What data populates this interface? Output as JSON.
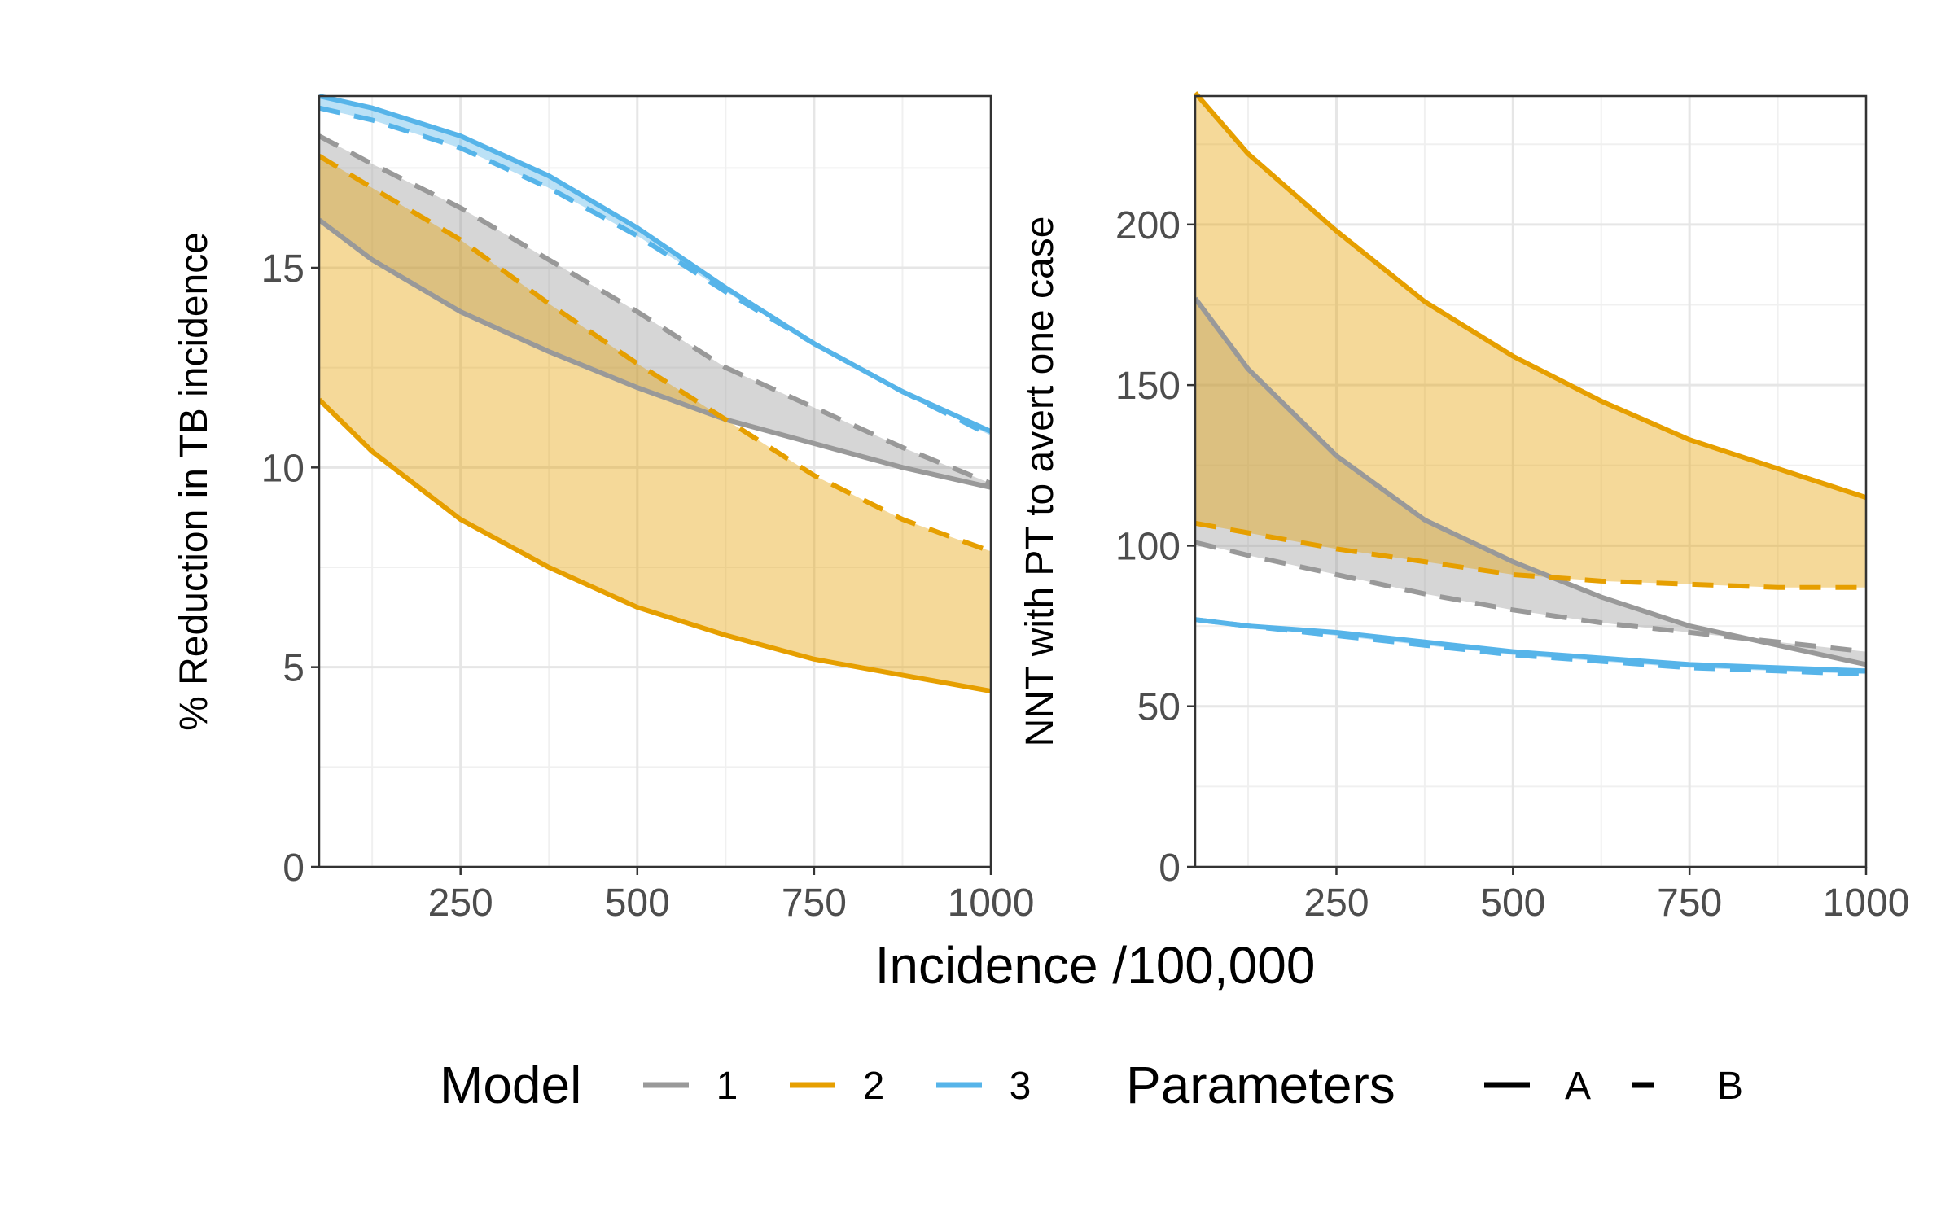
{
  "chart_data": [
    {
      "type": "line",
      "panel": "left",
      "ylabel": "% Reduction in TB incidence",
      "xlim": [
        50,
        1000
      ],
      "ylim": [
        0,
        19.3
      ],
      "x_ticks": [
        250,
        500,
        750,
        1000
      ],
      "y_ticks": [
        0,
        5,
        10,
        15
      ],
      "grid": true,
      "x": [
        50,
        125,
        250,
        375,
        500,
        625,
        750,
        875,
        1000
      ],
      "series": [
        {
          "name": "1",
          "parameters": "A",
          "color": "#999999",
          "values": [
            16.2,
            15.2,
            13.9,
            12.9,
            12.0,
            11.2,
            10.6,
            10.0,
            9.5
          ]
        },
        {
          "name": "1",
          "parameters": "B",
          "color": "#999999",
          "values": [
            18.3,
            17.6,
            16.5,
            15.2,
            13.9,
            12.5,
            11.5,
            10.5,
            9.6
          ]
        },
        {
          "name": "2",
          "parameters": "A",
          "color": "#E69F00",
          "values": [
            11.7,
            10.4,
            8.7,
            7.5,
            6.5,
            5.8,
            5.2,
            4.8,
            4.4
          ]
        },
        {
          "name": "2",
          "parameters": "B",
          "color": "#E69F00",
          "values": [
            17.8,
            17.0,
            15.7,
            14.1,
            12.6,
            11.2,
            9.8,
            8.7,
            7.9
          ]
        },
        {
          "name": "3",
          "parameters": "A",
          "color": "#56B4E9",
          "values": [
            19.3,
            19.0,
            18.3,
            17.3,
            16.0,
            14.5,
            13.1,
            11.9,
            10.9
          ]
        },
        {
          "name": "3",
          "parameters": "B",
          "color": "#56B4E9",
          "values": [
            19.0,
            18.7,
            18.0,
            17.0,
            15.8,
            14.4,
            13.1,
            11.9,
            10.8
          ]
        }
      ]
    },
    {
      "type": "line",
      "panel": "right",
      "ylabel": "NNT with PT to avert one case",
      "xlim": [
        50,
        1000
      ],
      "ylim": [
        0,
        240
      ],
      "x_ticks": [
        250,
        500,
        750,
        1000
      ],
      "y_ticks": [
        0,
        50,
        100,
        150,
        200
      ],
      "grid": true,
      "x": [
        50,
        125,
        250,
        375,
        500,
        625,
        750,
        875,
        1000
      ],
      "series": [
        {
          "name": "1",
          "parameters": "A",
          "color": "#999999",
          "values": [
            177,
            155,
            128,
            108,
            95,
            84,
            75,
            69,
            63
          ]
        },
        {
          "name": "1",
          "parameters": "B",
          "color": "#999999",
          "values": [
            101,
            97,
            91,
            85,
            80,
            76,
            73,
            70,
            67
          ]
        },
        {
          "name": "2",
          "parameters": "A",
          "color": "#E69F00",
          "values": [
            241,
            222,
            198,
            176,
            159,
            145,
            133,
            124,
            115
          ]
        },
        {
          "name": "2",
          "parameters": "B",
          "color": "#E69F00",
          "values": [
            107,
            104,
            99,
            95,
            91,
            89,
            88,
            87,
            87
          ]
        },
        {
          "name": "3",
          "parameters": "A",
          "color": "#56B4E9",
          "values": [
            77,
            75,
            73,
            70,
            67,
            65,
            63,
            62,
            61
          ]
        },
        {
          "name": "3",
          "parameters": "B",
          "color": "#56B4E9",
          "values": [
            77,
            75,
            72,
            69,
            66,
            64,
            62,
            61,
            60
          ]
        }
      ]
    }
  ],
  "xlabel": "Incidence /100,000",
  "legend": {
    "model_title": "Model",
    "model_items": [
      {
        "label": "1",
        "color": "#999999"
      },
      {
        "label": "2",
        "color": "#E69F00"
      },
      {
        "label": "3",
        "color": "#56B4E9"
      }
    ],
    "params_title": "Parameters",
    "params_items": [
      {
        "label": "A",
        "style": "solid"
      },
      {
        "label": "B",
        "style": "dashed"
      }
    ],
    "placement": "bottom"
  }
}
